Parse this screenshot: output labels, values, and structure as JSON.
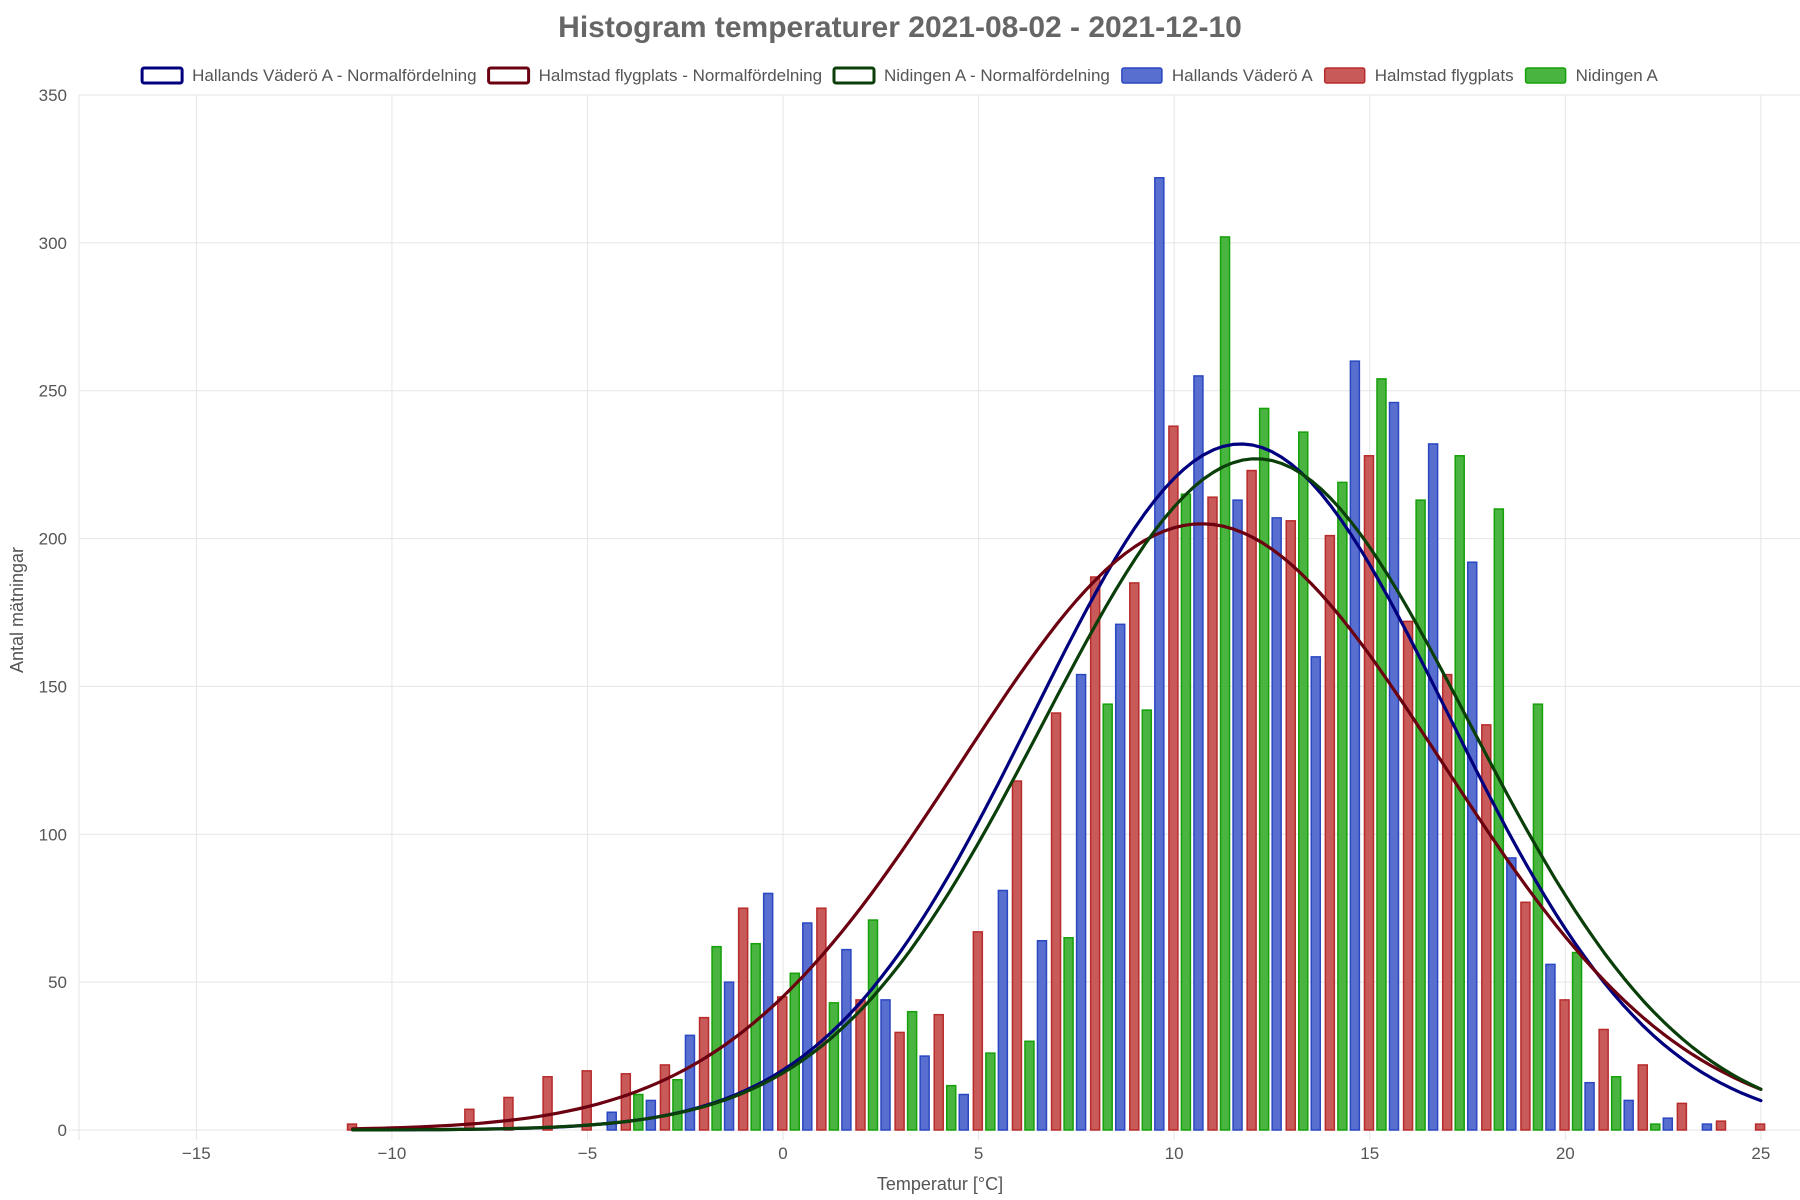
{
  "chart_data": {
    "type": "bar",
    "title": "Histogram temperaturer 2021-08-02 - 2021-12-10",
    "xlabel": "Temperatur [°C]",
    "ylabel": "Antal mätningar",
    "xlim": [
      -18,
      26
    ],
    "ylim": [
      0,
      350
    ],
    "x_ticks": [
      -15,
      -10,
      -5,
      0,
      5,
      10,
      15,
      20,
      25
    ],
    "y_ticks": [
      0,
      50,
      100,
      150,
      200,
      250,
      300,
      350
    ],
    "x_tick_labels": [
      "−15",
      "−10",
      "−5",
      "0",
      "5",
      "10",
      "15",
      "20",
      "25"
    ],
    "y_tick_labels": [
      "0",
      "50",
      "100",
      "150",
      "200",
      "250",
      "300",
      "350"
    ],
    "grid": true,
    "legend_position": "top",
    "bins": [
      -11,
      -10,
      -9,
      -8,
      -7,
      -6,
      -5,
      -4,
      -3,
      -2,
      -1,
      0,
      1,
      2,
      3,
      4,
      5,
      6,
      7,
      8,
      9,
      10,
      11,
      12,
      13,
      14,
      15,
      16,
      17,
      18,
      19,
      20,
      21,
      22,
      23,
      24,
      25
    ],
    "series": [
      {
        "name": "Hallands Väderö A",
        "kind": "bar",
        "color": "#2a47c2",
        "values": [
          0,
          0,
          0,
          0,
          0,
          0,
          0,
          6,
          10,
          32,
          50,
          80,
          70,
          61,
          44,
          25,
          12,
          81,
          64,
          154,
          171,
          322,
          255,
          213,
          207,
          160,
          260,
          246,
          232,
          192,
          92,
          56,
          16,
          10,
          4,
          2,
          0
        ]
      },
      {
        "name": "Halmstad flygplats",
        "kind": "bar",
        "color": "#b82b2b",
        "values": [
          2,
          0,
          0,
          7,
          11,
          18,
          20,
          19,
          22,
          38,
          75,
          45,
          75,
          44,
          33,
          39,
          67,
          118,
          141,
          187,
          185,
          238,
          214,
          223,
          206,
          201,
          228,
          172,
          154,
          137,
          77,
          44,
          34,
          22,
          9,
          3,
          2
        ]
      },
      {
        "name": "Nidingen A",
        "kind": "bar",
        "color": "#16a00a",
        "values": [
          0,
          0,
          0,
          0,
          0,
          0,
          0,
          12,
          17,
          62,
          63,
          53,
          43,
          71,
          40,
          15,
          26,
          30,
          65,
          144,
          142,
          215,
          302,
          244,
          236,
          219,
          254,
          213,
          228,
          210,
          144,
          60,
          18,
          2,
          0,
          0,
          0
        ]
      },
      {
        "name": "Hallands Väderö A - Normalfördelning",
        "kind": "line",
        "color": "#00007f",
        "mean": 11.7,
        "sd": 5.3,
        "peak": 232,
        "x_range": [
          -11,
          25
        ]
      },
      {
        "name": "Halmstad flygplats - Normalfördelning",
        "kind": "line",
        "color": "#6b0010",
        "mean": 10.7,
        "sd": 6.15,
        "peak": 205,
        "x_range": [
          -11,
          25
        ]
      },
      {
        "name": "Nidingen A - Normalfördelning",
        "kind": "line",
        "color": "#0a3f0a",
        "mean": 12.1,
        "sd": 5.45,
        "peak": 227,
        "x_range": [
          -11,
          25
        ]
      }
    ]
  }
}
